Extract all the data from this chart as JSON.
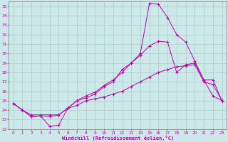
{
  "xlabel": "Windchill (Refroidissement éolien,°C)",
  "xlim": [
    -0.5,
    23.5
  ],
  "ylim": [
    22,
    35.5
  ],
  "xticks": [
    0,
    1,
    2,
    3,
    4,
    5,
    6,
    7,
    8,
    9,
    10,
    11,
    12,
    13,
    14,
    15,
    16,
    17,
    18,
    19,
    20,
    21,
    22,
    23
  ],
  "yticks": [
    22,
    23,
    24,
    25,
    26,
    27,
    28,
    29,
    30,
    31,
    32,
    33,
    34,
    35
  ],
  "bg_color": "#cce8e8",
  "grid_color": "#aacccc",
  "line_color": "#bb00aa",
  "line1_x": [
    0,
    1,
    2,
    3,
    4,
    5,
    6,
    7,
    8,
    9,
    10,
    11,
    12,
    13,
    14,
    15,
    16,
    17,
    18,
    19,
    20,
    21,
    22,
    23
  ],
  "line1_y": [
    24.7,
    24.0,
    23.3,
    23.4,
    22.3,
    22.4,
    24.2,
    25.0,
    25.3,
    25.7,
    26.5,
    27.0,
    28.3,
    29.0,
    30.0,
    35.3,
    35.2,
    33.8,
    32.0,
    31.2,
    29.2,
    27.2,
    25.5,
    25.0
  ],
  "line2_x": [
    0,
    1,
    2,
    3,
    4,
    5,
    6,
    7,
    8,
    9,
    10,
    11,
    12,
    13,
    14,
    15,
    16,
    17,
    18,
    19,
    20,
    21,
    22,
    23
  ],
  "line2_y": [
    24.7,
    24.0,
    23.3,
    23.4,
    23.3,
    23.5,
    24.2,
    25.0,
    25.5,
    25.9,
    26.6,
    27.2,
    28.0,
    29.0,
    29.8,
    30.8,
    31.3,
    31.2,
    28.0,
    28.8,
    29.0,
    27.2,
    27.2,
    25.0
  ],
  "line3_x": [
    0,
    1,
    2,
    3,
    4,
    5,
    6,
    7,
    8,
    9,
    10,
    11,
    12,
    13,
    14,
    15,
    16,
    17,
    18,
    19,
    20,
    21,
    22,
    23
  ],
  "line3_y": [
    24.7,
    24.0,
    23.5,
    23.5,
    23.5,
    23.5,
    24.2,
    24.5,
    25.0,
    25.2,
    25.4,
    25.7,
    26.0,
    26.5,
    27.0,
    27.5,
    28.0,
    28.3,
    28.6,
    28.7,
    28.8,
    27.0,
    26.7,
    25.0
  ]
}
